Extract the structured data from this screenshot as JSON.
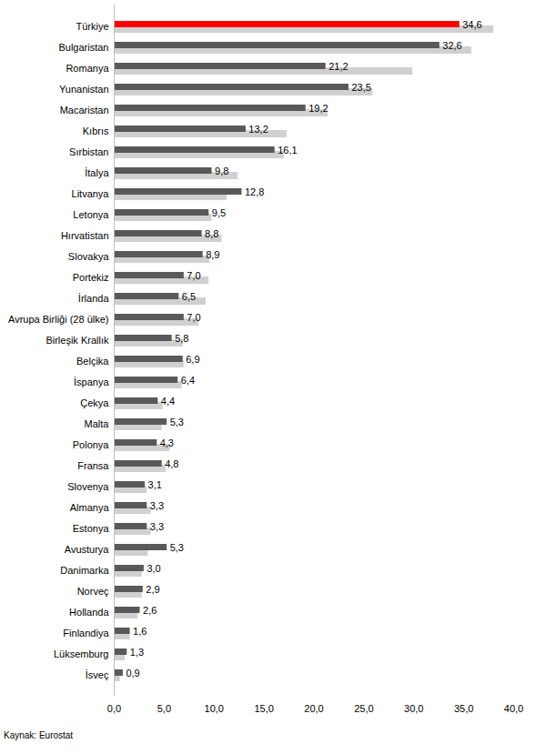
{
  "chart_data": {
    "type": "bar",
    "orientation": "horizontal",
    "caption": "Kaynak: Eurostat",
    "categories": [
      "Türkiye",
      "Bulgaristan",
      "Romanya",
      "Yunanistan",
      "Macaristan",
      "Kıbrıs",
      "Sırbistan",
      "İtalya",
      "Litvanya",
      "Letonya",
      "Hırvatistan",
      "Slovakya",
      "Portekiz",
      "İrlanda",
      "Avrupa Birliği (28 ülke)",
      "Birleşik Krallık",
      "Belçika",
      "İspanya",
      "Çekya",
      "Malta",
      "Polonya",
      "Fransa",
      "Slovenya",
      "Almanya",
      "Estonya",
      "Avusturya",
      "Danimarka",
      "Norveç",
      "Hollanda",
      "Finlandiya",
      "Lüksemburg",
      "İsveç"
    ],
    "series": [
      {
        "color": "#d0d0d0",
        "values": [
          38.0,
          35.8,
          29.9,
          25.9,
          21.4,
          17.3,
          17.0,
          12.4,
          11.3,
          9.8,
          10.8,
          9.6,
          9.5,
          9.2,
          8.5,
          6.9,
          7.0,
          6.8,
          4.9,
          4.8,
          5.6,
          5.2,
          3.3,
          3.7,
          3.7,
          3.4,
          2.8,
          2.8,
          2.4,
          1.6,
          1.1,
          0.6
        ]
      },
      {
        "color": "#595959",
        "colors": [
          "#ff0000",
          "#595959",
          "#595959",
          "#595959",
          "#595959",
          "#595959",
          "#595959",
          "#595959",
          "#595959",
          "#595959",
          "#595959",
          "#595959",
          "#595959",
          "#595959",
          "#595959",
          "#595959",
          "#595959",
          "#595959",
          "#595959",
          "#595959",
          "#595959",
          "#595959",
          "#595959",
          "#595959",
          "#595959",
          "#595959",
          "#595959",
          "#595959",
          "#595959",
          "#595959",
          "#595959",
          "#595959"
        ],
        "data_labels": true,
        "values": [
          34.6,
          32.6,
          21.2,
          23.5,
          19.2,
          13.2,
          16.1,
          9.8,
          12.8,
          9.5,
          8.8,
          8.9,
          7.0,
          6.5,
          7.0,
          5.8,
          6.9,
          6.4,
          4.4,
          5.3,
          4.3,
          4.8,
          3.1,
          3.3,
          3.3,
          5.3,
          3.0,
          2.9,
          2.6,
          1.6,
          1.3,
          0.9
        ],
        "value_labels": [
          "34,6",
          "32,6",
          "21,2",
          "23,5",
          "19,2",
          "13,2",
          "16,1",
          "9,8",
          "12,8",
          "9,5",
          "8,8",
          "8,9",
          "7,0",
          "6,5",
          "7,0",
          "5,8",
          "6,9",
          "6,4",
          "4,4",
          "5,3",
          "4,3",
          "4,8",
          "3,1",
          "3,3",
          "3,3",
          "5,3",
          "3,0",
          "2,9",
          "2,6",
          "1,6",
          "1,3",
          "0,9"
        ]
      }
    ],
    "xlim": [
      0,
      40
    ],
    "xticks": [
      {
        "value": 0,
        "label": "0,0"
      },
      {
        "value": 5,
        "label": "5,0"
      },
      {
        "value": 10,
        "label": "10,0"
      },
      {
        "value": 15,
        "label": "15,0"
      },
      {
        "value": 20,
        "label": "20,0"
      },
      {
        "value": 25,
        "label": "25,0"
      },
      {
        "value": 30,
        "label": "30,0"
      },
      {
        "value": 35,
        "label": "35,0"
      },
      {
        "value": 40,
        "label": "40,0"
      }
    ],
    "grid": false,
    "legend": false
  }
}
